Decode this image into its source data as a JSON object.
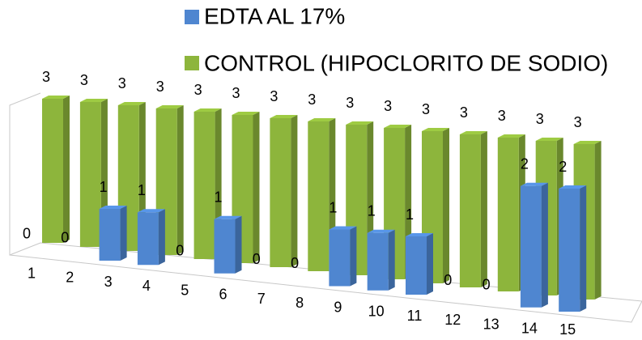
{
  "chart_data": {
    "type": "bar3d",
    "categories": [
      "1",
      "2",
      "3",
      "4",
      "5",
      "6",
      "7",
      "8",
      "9",
      "10",
      "11",
      "12",
      "13",
      "14",
      "15"
    ],
    "series": [
      {
        "name": "EDTA AL 17%",
        "color": "#4f86d0",
        "values": [
          0,
          0,
          1,
          1,
          0,
          1,
          0,
          0,
          1,
          1,
          1,
          0,
          0,
          2,
          2
        ]
      },
      {
        "name": "CONTROL (HIPOCLORITO DE SODIO)",
        "color": "#8db53c",
        "values": [
          3,
          3,
          3,
          3,
          3,
          3,
          3,
          3,
          3,
          3,
          3,
          3,
          3,
          3,
          3
        ]
      }
    ],
    "legend": "top"
  }
}
